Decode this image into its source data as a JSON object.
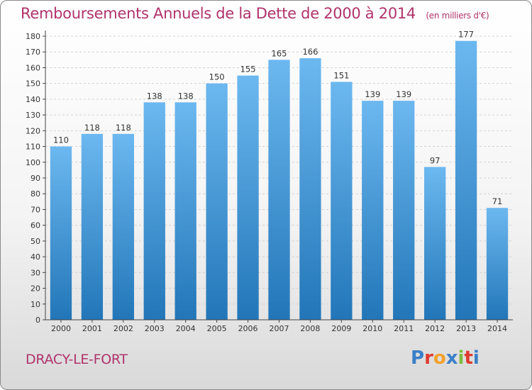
{
  "chart_data": {
    "type": "bar",
    "title": "Remboursements Annuels de la Dette de 2000 à 2014",
    "subtitle": "(en milliers d'€)",
    "categories": [
      "2000",
      "2001",
      "2002",
      "2003",
      "2004",
      "2005",
      "2006",
      "2007",
      "2008",
      "2009",
      "2010",
      "2011",
      "2012",
      "2013",
      "2014"
    ],
    "values": [
      110,
      118,
      118,
      138,
      138,
      150,
      155,
      165,
      166,
      151,
      139,
      139,
      97,
      177,
      71
    ],
    "ylim": [
      0,
      180
    ],
    "yticks": [
      0,
      10,
      20,
      30,
      40,
      50,
      60,
      70,
      80,
      90,
      100,
      110,
      120,
      130,
      140,
      150,
      160,
      170,
      180
    ],
    "xlabel": "",
    "ylabel": "",
    "grid": true,
    "bar_color": "#4a9ee0"
  },
  "footer": {
    "city": "DRACY-LE-FORT",
    "logo": "Proxiti"
  },
  "colors": {
    "title": "#b0336b",
    "bar_top": "#6cb8f0",
    "bar_bottom": "#2276b8",
    "logo_letters": [
      "#3a7fc8",
      "#e03a2f",
      "#f2a12b",
      "#3a7fc8",
      "#7dbb3a",
      "#e03a2f",
      "#3a7fc8"
    ]
  }
}
